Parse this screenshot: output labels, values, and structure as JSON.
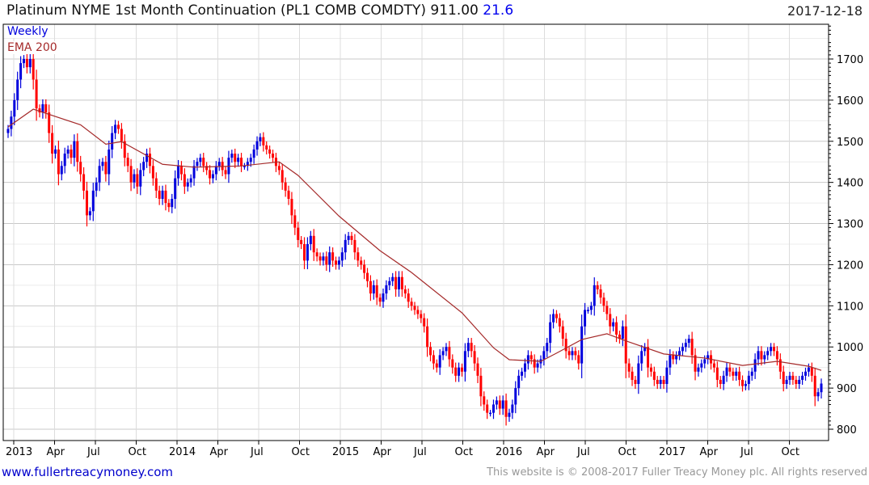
{
  "header": {
    "title": "Platinum NYME 1st Month Continuation (PL1 COMB COMDTY) 911.00",
    "change": "21.6",
    "date": "2017-12-18"
  },
  "legend": {
    "weekly": "Weekly",
    "ema": "EMA 200"
  },
  "footer": {
    "url": "www.fullertreacymoney.com",
    "copyright": "This website is © 2008-2017 Fuller Treacy Money plc. All rights reserved"
  },
  "colors": {
    "up": "#0000dd",
    "down": "#ff0000",
    "ema": "#a52a2a",
    "grid": "#dddddd"
  },
  "chart_data": {
    "type": "candlestick",
    "title": "Platinum NYME 1st Month Continuation (PL1 COMB COMDTY)",
    "interval": "weekly",
    "ylim": [
      780,
      1760
    ],
    "yticks": [
      800,
      900,
      1000,
      1100,
      1200,
      1300,
      1400,
      1500,
      1600,
      1700
    ],
    "xticks": [
      "2013",
      "Apr",
      "Jul",
      "Oct",
      "2014",
      "Apr",
      "Jul",
      "Oct",
      "2015",
      "Apr",
      "Jul",
      "Oct",
      "2016",
      "Apr",
      "Jul",
      "Oct",
      "2017",
      "Apr",
      "Jul",
      "Oct"
    ],
    "close": [
      1530,
      1560,
      1600,
      1650,
      1690,
      1700,
      1680,
      1700,
      1650,
      1580,
      1570,
      1590,
      1570,
      1520,
      1470,
      1480,
      1420,
      1440,
      1470,
      1480,
      1460,
      1500,
      1450,
      1420,
      1380,
      1320,
      1330,
      1380,
      1400,
      1440,
      1450,
      1420,
      1480,
      1520,
      1540,
      1530,
      1500,
      1460,
      1440,
      1400,
      1420,
      1390,
      1430,
      1450,
      1470,
      1440,
      1410,
      1380,
      1360,
      1380,
      1350,
      1340,
      1360,
      1410,
      1440,
      1420,
      1390,
      1400,
      1410,
      1440,
      1450,
      1460,
      1440,
      1430,
      1410,
      1420,
      1440,
      1450,
      1430,
      1420,
      1460,
      1470,
      1450,
      1460,
      1440,
      1440,
      1450,
      1460,
      1480,
      1500,
      1510,
      1490,
      1480,
      1470,
      1460,
      1440,
      1430,
      1400,
      1380,
      1360,
      1320,
      1290,
      1260,
      1250,
      1210,
      1250,
      1270,
      1230,
      1220,
      1210,
      1220,
      1200,
      1230,
      1210,
      1200,
      1210,
      1230,
      1260,
      1270,
      1260,
      1230,
      1210,
      1200,
      1180,
      1160,
      1130,
      1150,
      1120,
      1110,
      1130,
      1150,
      1160,
      1170,
      1140,
      1170,
      1140,
      1130,
      1110,
      1100,
      1090,
      1080,
      1070,
      1050,
      1000,
      980,
      960,
      950,
      980,
      990,
      1000,
      970,
      950,
      930,
      950,
      940,
      990,
      1010,
      990,
      960,
      930,
      880,
      860,
      840,
      840,
      860,
      870,
      850,
      870,
      830,
      840,
      860,
      900,
      930,
      940,
      960,
      980,
      970,
      950,
      960,
      970,
      990,
      1010,
      1060,
      1080,
      1070,
      1050,
      1020,
      990,
      980,
      990,
      980,
      960,
      1050,
      1090,
      1090,
      1100,
      1150,
      1140,
      1120,
      1100,
      1080,
      1050,
      1060,
      1030,
      1020,
      1050,
      960,
      940,
      920,
      910,
      960,
      990,
      1000,
      950,
      940,
      920,
      910,
      920,
      910,
      950,
      980,
      970,
      980,
      990,
      1000,
      1010,
      1020,
      980,
      940,
      950,
      960,
      970,
      980,
      960,
      950,
      920,
      910,
      930,
      950,
      940,
      930,
      940,
      920,
      905,
      910,
      930,
      940,
      970,
      990,
      970,
      980,
      990,
      1000,
      990,
      970,
      940,
      910,
      920,
      930,
      920,
      910,
      920,
      930,
      940,
      950,
      930,
      880,
      890,
      911
    ],
    "ema_200": [
      [
        0,
        1535
      ],
      [
        8,
        1578
      ],
      [
        23,
        1540
      ],
      [
        31,
        1493
      ],
      [
        36,
        1499
      ],
      [
        49,
        1444
      ],
      [
        59,
        1437
      ],
      [
        74,
        1440
      ],
      [
        86,
        1450
      ],
      [
        92,
        1417
      ],
      [
        105,
        1318
      ],
      [
        118,
        1234
      ],
      [
        128,
        1181
      ],
      [
        144,
        1083
      ],
      [
        154,
        998
      ],
      [
        159,
        969
      ],
      [
        169,
        965
      ],
      [
        174,
        985
      ],
      [
        182,
        1018
      ],
      [
        190,
        1032
      ],
      [
        197,
        1012
      ],
      [
        208,
        983
      ],
      [
        221,
        973
      ],
      [
        233,
        955
      ],
      [
        244,
        965
      ],
      [
        254,
        953
      ],
      [
        258,
        943
      ]
    ],
    "last_close": 911.0
  }
}
